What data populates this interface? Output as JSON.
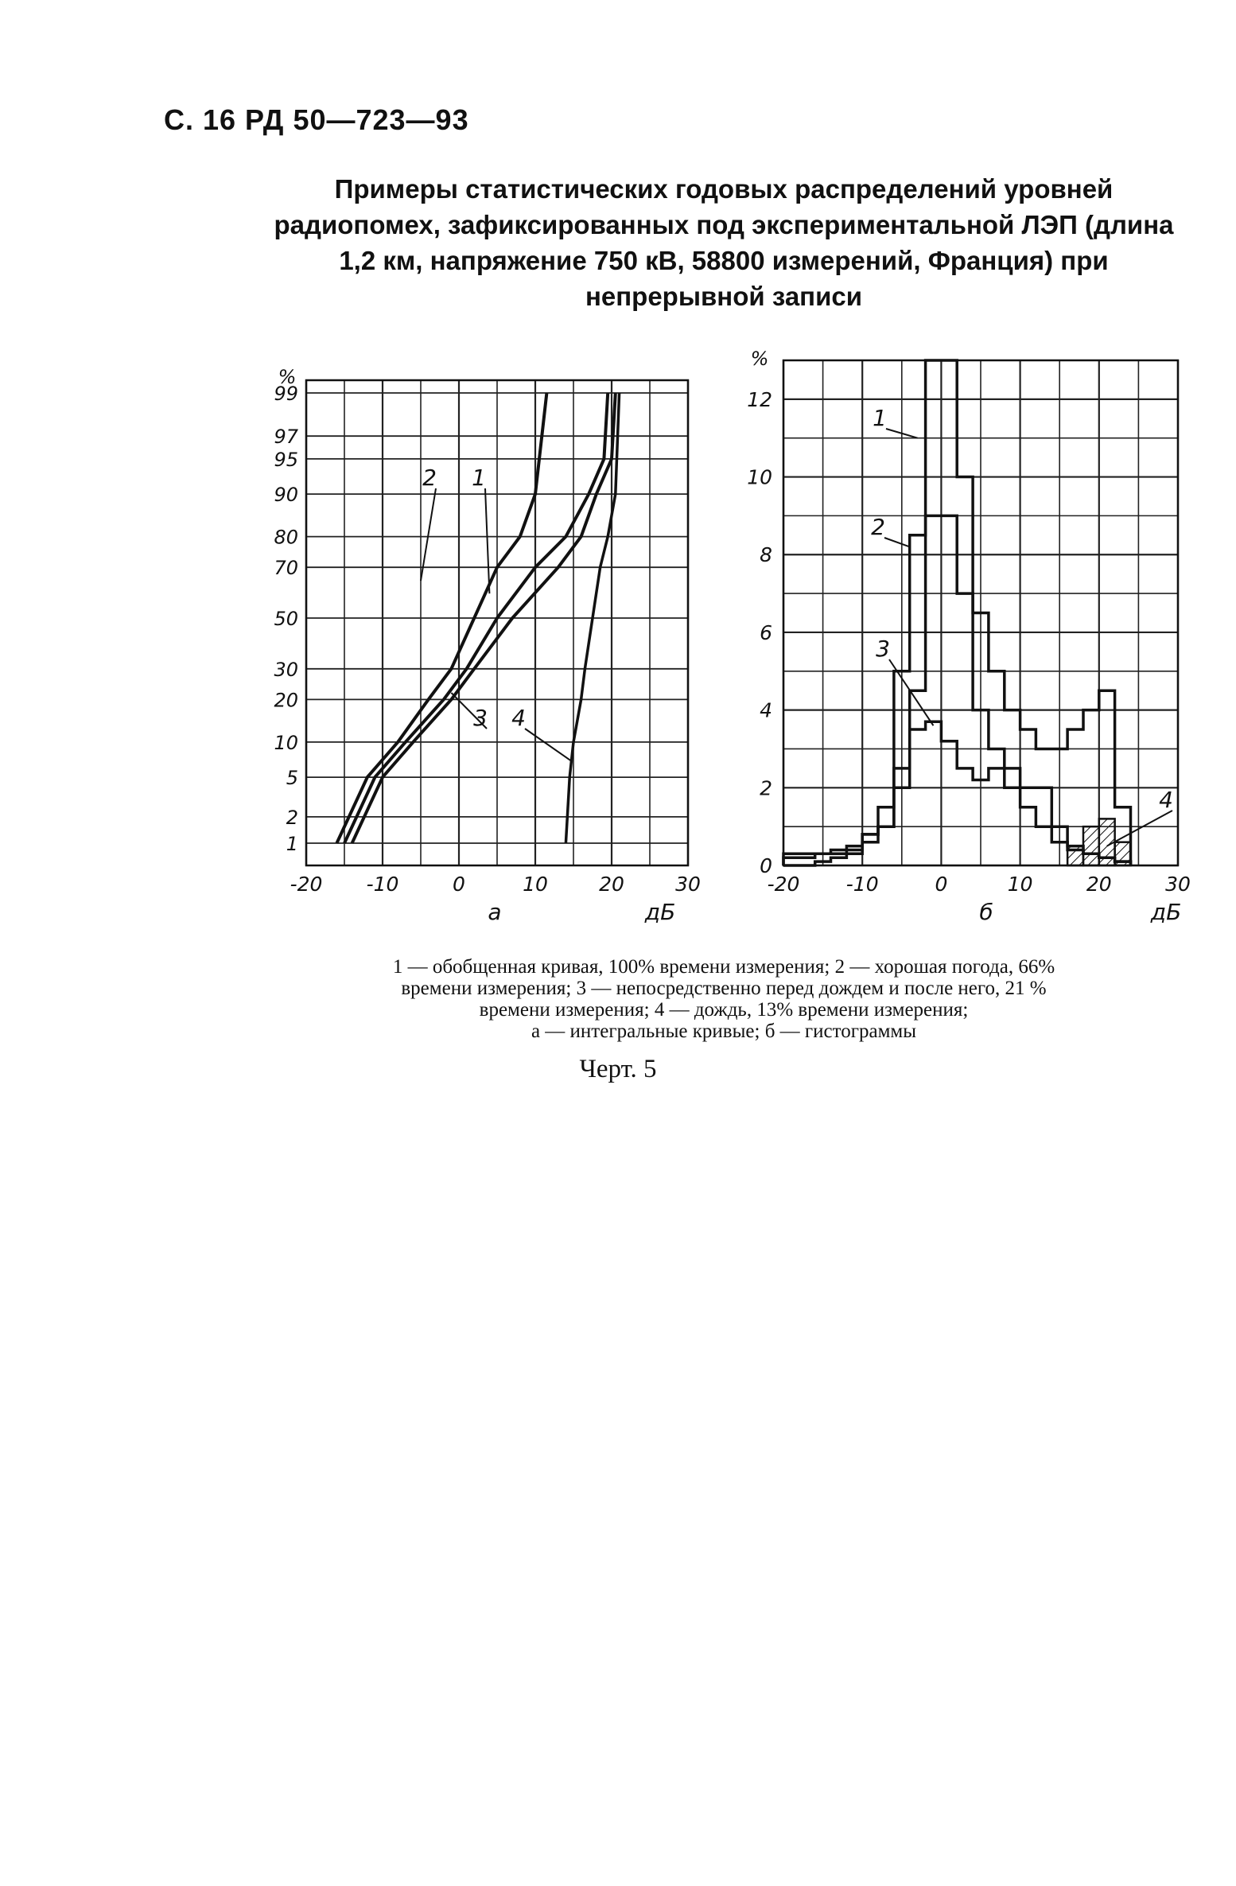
{
  "header": "С. 16 РД 50—723—93",
  "title": "Примеры статистических годовых распределений уровней радиопомех, зафиксированных под экспериментальной ЛЭП (длина 1,2 км, напряжение 750 кВ, 58800 измерений, Франция) при непрерывной записи",
  "caption_lines": [
    "1 — обобщенная кривая, 100% времени измерения; 2 — хорошая погода, 66%",
    "времени измерения; 3 — непосредственно перед дождем и после него, 21 %",
    "времени измерения; 4 — дождь, 13% времени измерения;",
    "а — интегральные кривые; б — гистограммы"
  ],
  "chert": "Черт. 5",
  "colors": {
    "ink": "#111111",
    "grid": "#222222",
    "paper": "#ffffff"
  },
  "chart_data": [
    {
      "type": "line",
      "subplot_label": "а",
      "ylabel": "%",
      "xlabel": "дБ",
      "xlim": [
        -20,
        30
      ],
      "x_ticks": [
        "-20",
        "-10",
        "0",
        "10",
        "20",
        "30"
      ],
      "y_scale": "probability",
      "y_ticks": [
        "1",
        "2",
        "5",
        "10",
        "20",
        "30",
        "50",
        "70",
        "80",
        "90",
        "95",
        "97",
        "99"
      ],
      "grid": true,
      "series": [
        {
          "name": "1",
          "x": [
            -15,
            -11,
            -7,
            -2,
            1,
            5,
            10,
            14,
            17,
            19,
            19.5
          ],
          "y": [
            1,
            5,
            10,
            20,
            30,
            50,
            70,
            80,
            90,
            95,
            99
          ]
        },
        {
          "name": "2",
          "x": [
            -16,
            -12,
            -8,
            -4,
            -1,
            2,
            5,
            8,
            10,
            11.5
          ],
          "y": [
            1,
            5,
            10,
            20,
            30,
            50,
            70,
            80,
            90,
            99
          ]
        },
        {
          "name": "3",
          "x": [
            -14,
            -10,
            -6,
            -1,
            2,
            7,
            13,
            16,
            18,
            20,
            20.5
          ],
          "y": [
            1,
            5,
            10,
            20,
            30,
            50,
            70,
            80,
            90,
            95,
            99
          ]
        },
        {
          "name": "4",
          "x": [
            14,
            14.5,
            15,
            16,
            16.5,
            17.5,
            18.5,
            19.5,
            20.5,
            21
          ],
          "y": [
            1,
            5,
            10,
            20,
            30,
            50,
            70,
            80,
            90,
            99
          ]
        }
      ],
      "curve_labels": [
        "1",
        "2",
        "3",
        "4"
      ]
    },
    {
      "type": "bar",
      "subplot_label": "б",
      "ylabel": "%",
      "xlabel": "дБ",
      "xlim": [
        -20,
        30
      ],
      "ylim": [
        0,
        13
      ],
      "x_ticks": [
        "-20",
        "-10",
        "0",
        "10",
        "20",
        "30"
      ],
      "y_ticks": [
        "0",
        "2",
        "4",
        "6",
        "8",
        "10",
        "12"
      ],
      "grid": true,
      "bin_edges": [
        -20,
        -18,
        -16,
        -14,
        -12,
        -10,
        -8,
        -6,
        -4,
        -2,
        0,
        2,
        4,
        6,
        8,
        10,
        12,
        14,
        16,
        18,
        20,
        22,
        24
      ],
      "series": [
        {
          "name": "1",
          "values": [
            0.3,
            0.3,
            0.3,
            0.4,
            0.5,
            0.8,
            1.0,
            2.0,
            4.5,
            13.0,
            13.0,
            10.0,
            6.5,
            5.0,
            4.0,
            3.5,
            3.0,
            3.0,
            3.5,
            4.0,
            4.5,
            1.5
          ]
        },
        {
          "name": "2",
          "values": [
            0.2,
            0.2,
            0.3,
            0.3,
            0.4,
            0.6,
            1.0,
            5.0,
            8.5,
            9.0,
            9.0,
            7.0,
            4.0,
            3.0,
            2.5,
            2.0,
            2.0,
            1.0,
            0.5,
            0.3,
            0.2,
            0.1
          ]
        },
        {
          "name": "3",
          "values": [
            0.0,
            0.0,
            0.1,
            0.2,
            0.3,
            0.8,
            1.5,
            2.5,
            3.5,
            3.7,
            3.2,
            2.5,
            2.2,
            2.5,
            2.0,
            1.5,
            1.0,
            0.6,
            0.4,
            0.3,
            0.2,
            0.1
          ]
        },
        {
          "name": "4",
          "values": [
            0,
            0,
            0,
            0,
            0,
            0,
            0,
            0,
            0,
            0,
            0,
            0,
            0,
            0,
            0,
            0,
            0,
            0,
            0.5,
            1.0,
            1.2,
            0.6
          ]
        }
      ],
      "curve_labels": [
        "1",
        "2",
        "3",
        "4"
      ]
    }
  ]
}
